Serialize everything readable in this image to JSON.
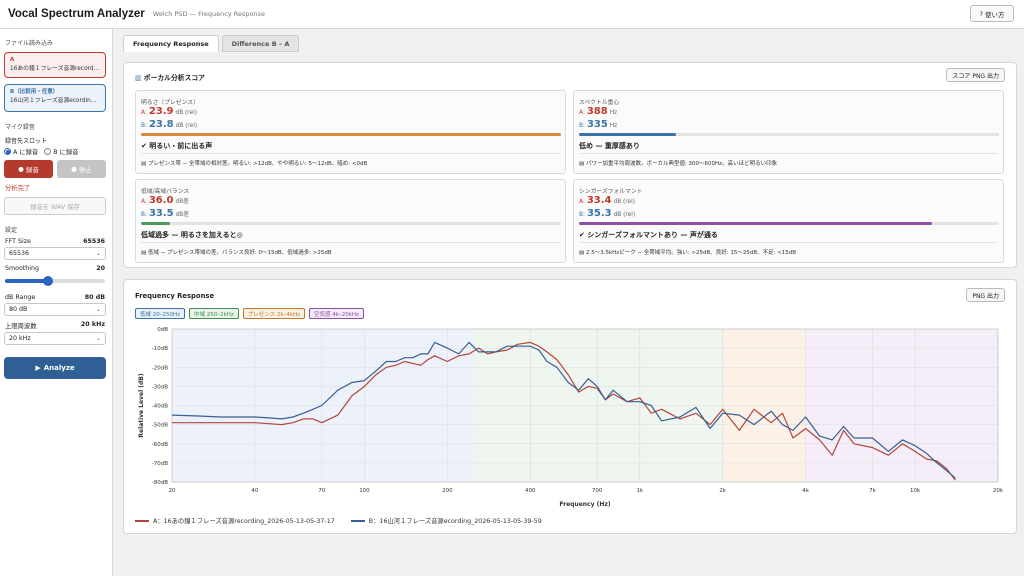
{
  "header": {
    "title": "Vocal Spectrum Analyzer",
    "subtitle": "Welch PSD — Frequency Response",
    "help_label": "使い方",
    "help_icon": "question-mark"
  },
  "sidebar": {
    "file_section": "ファイル読み込み",
    "slot_a": {
      "tag": "A",
      "name": "16あの鐘１フレーズ音源recording_2026-05-13-05-37-17"
    },
    "slot_b": {
      "tag": "B（比較用・任意）",
      "name": "16山河１フレーズ音源ecording_2026-05-13-05-39-59"
    },
    "mic_section": "マイク録音",
    "target_label": "録音先スロット",
    "radio_a": "A に録音",
    "radio_b": "B に録音",
    "radio_selected": "A",
    "record_label": "録音",
    "stop_label": "停止",
    "status": "分析完了",
    "save_wav_label": "録音を WAV 保存",
    "settings_section": "設定",
    "fft_label": "FFT Size",
    "fft_value": "65536",
    "fft_select": "65536",
    "smoothing_label": "Smoothing",
    "smoothing_value": "20",
    "smoothing_fraction": 0.42,
    "range_label": "dB Range",
    "range_value": "80 dB",
    "range_select": "80 dB",
    "upper_label": "上限周波数",
    "upper_value": "20 kHz",
    "upper_select": "20 kHz",
    "analyze_label": "Analyze"
  },
  "tabs": [
    "Frequency Response",
    "Difference B – A"
  ],
  "score_panel": {
    "title": "ボーカル分析スコア",
    "export_label": "スコア PNG 出力",
    "cards": [
      {
        "label": "明るさ（プレゼンス）",
        "a_value": "23.9",
        "a_unit": "dB (rel)",
        "b_value": "23.8",
        "b_unit": "dB (rel)",
        "bar_fraction": 1.0,
        "bar_color": "#d98a3c",
        "verdict": "✔ 明るい・前に出る声",
        "note": "プレゼンス帯 − 全帯域の相対差。明るい: >12dB、やや明るい: 5〜12dB、暗め: <0dB"
      },
      {
        "label": "スペクトル重心",
        "a_value": "388",
        "a_unit": "Hz",
        "b_value": "335",
        "b_unit": "Hz",
        "bar_fraction": 0.23,
        "bar_color": "#3a74a8",
        "verdict": "低め — 重厚感あり",
        "note": "パワー加重平均周波数。ボーカル典型値: 300〜600Hz。高いほど明るい印象"
      },
      {
        "label": "低域/高域バランス",
        "a_value": "36.0",
        "a_unit": "dB差",
        "b_value": "33.5",
        "b_unit": "dB差",
        "bar_fraction": 0.07,
        "bar_color": "#4a9a5a",
        "verdict": "低域過多 — 明るさを加えると◎",
        "note": "低域 − プレゼンス帯域の差。バランス良好: 0〜15dB、低域過多: >25dB"
      },
      {
        "label": "シンガーズフォルマント",
        "a_value": "33.4",
        "a_unit": "dB (rel)",
        "b_value": "35.3",
        "b_unit": "dB (rel)",
        "bar_fraction": 0.84,
        "bar_color": "#8e4fa6",
        "verdict": "✔ シンガーズフォルマントあり — 声が通る",
        "note": "2.5〜3.5kHzピーク − 全帯域平均。強い: >25dB、良好: 15〜25dB、不足: <15dB"
      }
    ]
  },
  "freq_panel": {
    "title": "Frequency Response",
    "export_label": "PNG 出力",
    "bands": [
      {
        "label": "低域 20–250Hz",
        "color": "#3a74a8",
        "bg": "#e9f0f8"
      },
      {
        "label": "中域 250–2kHz",
        "color": "#3f8f4f",
        "bg": "#eaf4ec"
      },
      {
        "label": "プレゼンス 2k–4kHz",
        "color": "#c4762a",
        "bg": "#fbf0e4"
      },
      {
        "label": "空気感 4k–20kHz",
        "color": "#8e4fa6",
        "bg": "#f3ebf7"
      }
    ]
  },
  "chart_data": {
    "type": "line",
    "xlabel": "Frequency (Hz)",
    "ylabel": "Relative Level (dB)",
    "x_scale": "log",
    "xlim": [
      20,
      20000
    ],
    "ylim": [
      -80,
      0
    ],
    "x_ticks": [
      20,
      40,
      70,
      100,
      200,
      400,
      700,
      1000,
      2000,
      4000,
      7000,
      10000,
      20000
    ],
    "x_tick_labels": [
      "20",
      "40",
      "70",
      "100",
      "200",
      "400",
      "700",
      "1k",
      "2k",
      "4k",
      "7k",
      "10k",
      "20k"
    ],
    "y_ticks": [
      0,
      -10,
      -20,
      -30,
      -40,
      -50,
      -60,
      -70,
      -80
    ],
    "y_tick_labels": [
      "0dB",
      "-10dB",
      "-20dB",
      "-30dB",
      "-40dB",
      "-50dB",
      "-60dB",
      "-70dB",
      "-80dB"
    ],
    "grid": true,
    "band_regions": [
      {
        "from": 20,
        "to": 250,
        "color": "#edf2fa"
      },
      {
        "from": 250,
        "to": 2000,
        "color": "#eef6ef"
      },
      {
        "from": 2000,
        "to": 4000,
        "color": "#fbf1e6"
      },
      {
        "from": 4000,
        "to": 20000,
        "color": "#f5eef8"
      }
    ],
    "series": [
      {
        "name": "A：16あの鐘１フレーズ音源recording_2026-05-13-05-37-17",
        "color": "#b5453c",
        "x": [
          20,
          25,
          30,
          35,
          40,
          45,
          50,
          55,
          60,
          65,
          70,
          80,
          90,
          100,
          110,
          120,
          130,
          140,
          150,
          160,
          170,
          180,
          200,
          220,
          240,
          260,
          280,
          300,
          330,
          360,
          400,
          430,
          460,
          500,
          550,
          600,
          650,
          700,
          750,
          800,
          900,
          1000,
          1100,
          1200,
          1400,
          1600,
          1800,
          2000,
          2300,
          2600,
          3000,
          3300,
          3600,
          4000,
          4500,
          5000,
          5500,
          6000,
          7000,
          8000,
          9000,
          10000,
          11000,
          12000,
          13000,
          14000
        ],
        "y": [
          -49,
          -49,
          -49,
          -49,
          -49,
          -49.5,
          -50,
          -49,
          -47,
          -47,
          -49,
          -45,
          -35,
          -30,
          -24,
          -20,
          -19,
          -17,
          -18,
          -19,
          -16,
          -14,
          -17,
          -14,
          -13,
          -10,
          -13,
          -12,
          -11,
          -8,
          -7,
          -9,
          -12,
          -16,
          -24,
          -33,
          -30,
          -31,
          -37,
          -34,
          -38,
          -36,
          -44,
          -42,
          -47,
          -44,
          -50,
          -42,
          -53,
          -42,
          -49,
          -44,
          -57,
          -52,
          -58,
          -66,
          -53,
          -60,
          -62,
          -66,
          -60,
          -64,
          -68,
          -69,
          -73,
          -79
        ]
      },
      {
        "name": "B：16山河１フレーズ音源ecording_2026-05-13-05-39-59",
        "color": "#355f96",
        "x": [
          20,
          25,
          30,
          35,
          40,
          45,
          50,
          55,
          60,
          65,
          70,
          80,
          90,
          100,
          110,
          120,
          130,
          140,
          150,
          160,
          170,
          180,
          200,
          220,
          240,
          260,
          280,
          300,
          330,
          360,
          400,
          430,
          460,
          500,
          550,
          600,
          650,
          700,
          750,
          800,
          900,
          1000,
          1100,
          1200,
          1400,
          1600,
          1800,
          2000,
          2300,
          2600,
          3000,
          3300,
          3600,
          4000,
          4500,
          5000,
          5500,
          6000,
          7000,
          8000,
          9000,
          10000,
          11000,
          12000,
          13000,
          14000
        ],
        "y": [
          -45,
          -45.5,
          -46,
          -46,
          -46,
          -46.5,
          -47,
          -46,
          -44,
          -42,
          -40,
          -32,
          -28,
          -27,
          -22,
          -17,
          -17,
          -15,
          -15,
          -13,
          -13,
          -7,
          -10,
          -13,
          -7,
          -12,
          -12,
          -12,
          -9,
          -9,
          -9,
          -11,
          -17,
          -20,
          -28,
          -32,
          -26,
          -30,
          -37,
          -32,
          -38,
          -38,
          -40,
          -48,
          -46,
          -41,
          -52,
          -44,
          -45,
          -50,
          -43,
          -50,
          -53,
          -46,
          -56,
          -58,
          -51,
          -57,
          -57,
          -64,
          -58,
          -61,
          -65,
          -70,
          -74,
          -78
        ]
      }
    ]
  }
}
